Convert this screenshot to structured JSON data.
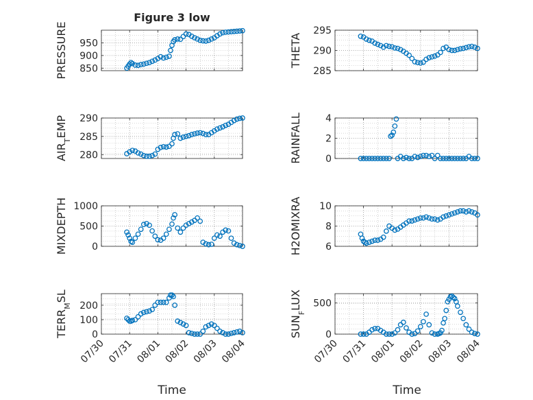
{
  "figure": {
    "title": "Figure 3 low",
    "xlabel": "Time"
  },
  "colors": {
    "marker": "#0072BD",
    "axis": "#262626",
    "grid": "#b0b0b0"
  },
  "chart_data": [
    {
      "type": "scatter",
      "position": "row1-left",
      "ylabel": "PRESSURE",
      "ylim": [
        840,
        1000
      ],
      "yticks": [
        850,
        900,
        950
      ],
      "xlim": [
        0,
        5
      ],
      "xticklabels": [
        "07/30",
        "07/31",
        "08/01",
        "08/02",
        "08/03",
        "08/04"
      ],
      "show_xticklabels": false,
      "x": [
        0.9,
        0.95,
        1.0,
        1.05,
        1.1,
        1.2,
        1.3,
        1.4,
        1.5,
        1.6,
        1.7,
        1.8,
        1.9,
        2.0,
        2.1,
        2.2,
        2.3,
        2.4,
        2.45,
        2.5,
        2.55,
        2.6,
        2.7,
        2.8,
        2.9,
        3.0,
        3.1,
        3.2,
        3.3,
        3.4,
        3.5,
        3.6,
        3.7,
        3.8,
        3.9,
        4.0,
        4.1,
        4.2,
        4.3,
        4.4,
        4.5,
        4.6,
        4.7,
        4.8,
        4.9,
        5.0
      ],
      "y": [
        850,
        858,
        866,
        872,
        868,
        862,
        861,
        864,
        866,
        869,
        872,
        877,
        882,
        888,
        895,
        890,
        893,
        897,
        920,
        940,
        955,
        962,
        965,
        964,
        975,
        985,
        983,
        976,
        970,
        965,
        960,
        958,
        957,
        960,
        965,
        970,
        978,
        985,
        990,
        992,
        993,
        994,
        995,
        996,
        997,
        998
      ]
    },
    {
      "type": "scatter",
      "position": "row1-right",
      "ylabel": "THETA",
      "ylim": [
        285,
        295
      ],
      "yticks": [
        285,
        290,
        295
      ],
      "xlim": [
        0,
        5
      ],
      "xticklabels": [
        "07/30",
        "07/31",
        "08/01",
        "08/02",
        "08/03",
        "08/04"
      ],
      "show_xticklabels": false,
      "x": [
        0.9,
        1.0,
        1.1,
        1.2,
        1.3,
        1.4,
        1.5,
        1.6,
        1.7,
        1.8,
        1.9,
        2.0,
        2.1,
        2.2,
        2.3,
        2.4,
        2.5,
        2.6,
        2.7,
        2.8,
        2.9,
        3.0,
        3.1,
        3.2,
        3.3,
        3.4,
        3.5,
        3.6,
        3.7,
        3.8,
        3.9,
        4.0,
        4.1,
        4.2,
        4.3,
        4.4,
        4.5,
        4.6,
        4.7,
        4.8,
        4.9,
        5.0
      ],
      "y": [
        293.5,
        293.3,
        292.8,
        292.5,
        292.3,
        291.8,
        291.5,
        291.2,
        290.8,
        291.2,
        291.0,
        290.9,
        290.6,
        290.5,
        290.2,
        289.8,
        289.3,
        288.8,
        288.0,
        287.2,
        287.0,
        286.9,
        287.1,
        287.8,
        288.2,
        288.4,
        288.6,
        288.9,
        289.5,
        290.5,
        290.8,
        290.2,
        290.0,
        290.0,
        290.2,
        290.4,
        290.5,
        290.7,
        290.9,
        291.0,
        290.8,
        290.5
      ]
    },
    {
      "type": "scatter",
      "position": "row2-left",
      "ylabel": "AIR_TEMP",
      "ylim": [
        279,
        290
      ],
      "yticks": [
        280,
        285,
        290
      ],
      "xlim": [
        0,
        5
      ],
      "xticklabels": [
        "07/30",
        "07/31",
        "08/01",
        "08/02",
        "08/03",
        "08/04"
      ],
      "show_xticklabels": false,
      "x": [
        0.9,
        1.0,
        1.1,
        1.2,
        1.3,
        1.4,
        1.5,
        1.6,
        1.7,
        1.8,
        1.9,
        2.0,
        2.1,
        2.2,
        2.3,
        2.4,
        2.5,
        2.55,
        2.6,
        2.7,
        2.8,
        2.9,
        3.0,
        3.1,
        3.2,
        3.3,
        3.4,
        3.5,
        3.6,
        3.7,
        3.8,
        3.9,
        4.0,
        4.1,
        4.2,
        4.3,
        4.4,
        4.5,
        4.6,
        4.7,
        4.8,
        4.9,
        5.0
      ],
      "y": [
        280.3,
        280.8,
        281.2,
        281.0,
        280.5,
        280.2,
        279.8,
        279.6,
        279.6,
        279.8,
        280.2,
        281.5,
        282.0,
        282.2,
        282.1,
        282.3,
        283.0,
        284.5,
        285.5,
        285.7,
        284.5,
        284.8,
        285.0,
        285.2,
        285.5,
        285.7,
        285.9,
        286.0,
        285.8,
        285.5,
        285.5,
        286.0,
        286.5,
        287.0,
        287.3,
        287.6,
        288.0,
        288.3,
        288.8,
        289.3,
        289.7,
        289.9,
        290.0
      ]
    },
    {
      "type": "scatter",
      "position": "row2-right",
      "ylabel": "RAINFALL",
      "ylim": [
        0,
        4
      ],
      "yticks": [
        0,
        2,
        4
      ],
      "xlim": [
        0,
        5
      ],
      "xticklabels": [
        "07/30",
        "07/31",
        "08/01",
        "08/02",
        "08/03",
        "08/04"
      ],
      "show_xticklabels": false,
      "x": [
        0.9,
        1.0,
        1.1,
        1.2,
        1.3,
        1.4,
        1.5,
        1.6,
        1.7,
        1.8,
        1.9,
        1.95,
        2.0,
        2.05,
        2.1,
        2.15,
        2.2,
        2.3,
        2.4,
        2.5,
        2.6,
        2.7,
        2.8,
        2.9,
        3.0,
        3.1,
        3.2,
        3.3,
        3.4,
        3.5,
        3.6,
        3.7,
        3.8,
        3.9,
        4.0,
        4.1,
        4.2,
        4.3,
        4.4,
        4.5,
        4.6,
        4.7,
        4.8,
        4.9,
        5.0
      ],
      "y": [
        0,
        0,
        0,
        0,
        0,
        0,
        0,
        0,
        0,
        0,
        0,
        2.2,
        2.3,
        2.6,
        3.2,
        3.9,
        0,
        0.2,
        0,
        0.1,
        0,
        0,
        0.2,
        0.1,
        0.2,
        0.3,
        0.3,
        0.2,
        0.3,
        0,
        0.3,
        0,
        0,
        0,
        0,
        0,
        0,
        0,
        0,
        0,
        0,
        0.2,
        0,
        0,
        0
      ]
    },
    {
      "type": "scatter",
      "position": "row3-left",
      "ylabel": "MIXDEPTH",
      "ylim": [
        0,
        1000
      ],
      "yticks": [
        0,
        500,
        1000
      ],
      "xlim": [
        0,
        5
      ],
      "xticklabels": [
        "07/30",
        "07/31",
        "08/01",
        "08/02",
        "08/03",
        "08/04"
      ],
      "show_xticklabels": false,
      "x": [
        0.9,
        0.95,
        1.0,
        1.05,
        1.1,
        1.2,
        1.3,
        1.4,
        1.5,
        1.6,
        1.7,
        1.8,
        1.9,
        2.0,
        2.1,
        2.2,
        2.3,
        2.4,
        2.5,
        2.55,
        2.6,
        2.7,
        2.8,
        2.9,
        3.0,
        3.1,
        3.2,
        3.3,
        3.4,
        3.5,
        3.6,
        3.7,
        3.8,
        3.9,
        4.0,
        4.1,
        4.2,
        4.3,
        4.4,
        4.5,
        4.6,
        4.7,
        4.8,
        4.9,
        5.0
      ],
      "y": [
        350,
        280,
        200,
        120,
        100,
        200,
        300,
        420,
        540,
        560,
        520,
        380,
        250,
        160,
        150,
        200,
        300,
        420,
        550,
        700,
        780,
        450,
        350,
        450,
        520,
        560,
        600,
        640,
        700,
        620,
        100,
        60,
        40,
        50,
        200,
        280,
        250,
        350,
        400,
        380,
        200,
        80,
        40,
        20,
        0
      ]
    },
    {
      "type": "scatter",
      "position": "row3-right",
      "ylabel": "H2OMIXRA",
      "ylim": [
        6,
        10
      ],
      "yticks": [
        6,
        8,
        10
      ],
      "xlim": [
        0,
        5
      ],
      "xticklabels": [
        "07/30",
        "07/31",
        "08/01",
        "08/02",
        "08/03",
        "08/04"
      ],
      "show_xticklabels": false,
      "x": [
        0.9,
        0.95,
        1.0,
        1.05,
        1.1,
        1.2,
        1.3,
        1.4,
        1.5,
        1.6,
        1.7,
        1.8,
        1.9,
        2.0,
        2.1,
        2.2,
        2.3,
        2.4,
        2.5,
        2.6,
        2.7,
        2.8,
        2.9,
        3.0,
        3.1,
        3.2,
        3.3,
        3.4,
        3.5,
        3.6,
        3.7,
        3.8,
        3.9,
        4.0,
        4.1,
        4.2,
        4.3,
        4.4,
        4.5,
        4.6,
        4.7,
        4.8,
        4.9,
        5.0
      ],
      "y": [
        7.2,
        6.8,
        6.5,
        6.4,
        6.3,
        6.4,
        6.5,
        6.6,
        6.6,
        6.7,
        6.9,
        7.5,
        8.0,
        7.8,
        7.6,
        7.7,
        7.9,
        8.1,
        8.3,
        8.5,
        8.5,
        8.6,
        8.7,
        8.8,
        8.8,
        8.9,
        8.8,
        8.7,
        8.7,
        8.6,
        8.7,
        8.9,
        9.0,
        9.1,
        9.2,
        9.3,
        9.4,
        9.5,
        9.5,
        9.4,
        9.5,
        9.4,
        9.3,
        9.1
      ]
    },
    {
      "type": "scatter",
      "position": "row4-left",
      "ylabel": "TERR_MSL",
      "ylim": [
        0,
        280
      ],
      "yticks": [
        0,
        100,
        200
      ],
      "xlim": [
        0,
        5
      ],
      "xticklabels": [
        "07/30",
        "07/31",
        "08/01",
        "08/02",
        "08/03",
        "08/04"
      ],
      "show_xticklabels": true,
      "x": [
        0.9,
        0.95,
        1.0,
        1.05,
        1.1,
        1.2,
        1.3,
        1.4,
        1.5,
        1.6,
        1.7,
        1.8,
        1.9,
        2.0,
        2.1,
        2.2,
        2.3,
        2.4,
        2.45,
        2.5,
        2.55,
        2.6,
        2.7,
        2.8,
        2.9,
        3.0,
        3.1,
        3.2,
        3.3,
        3.4,
        3.5,
        3.6,
        3.7,
        3.8,
        3.9,
        4.0,
        4.1,
        4.2,
        4.3,
        4.4,
        4.5,
        4.6,
        4.7,
        4.8,
        4.9,
        5.0
      ],
      "y": [
        110,
        100,
        90,
        90,
        95,
        100,
        120,
        140,
        150,
        155,
        160,
        170,
        200,
        220,
        220,
        220,
        220,
        250,
        270,
        270,
        260,
        200,
        90,
        80,
        70,
        60,
        10,
        5,
        0,
        0,
        0,
        20,
        50,
        60,
        70,
        60,
        40,
        20,
        10,
        0,
        0,
        5,
        10,
        15,
        20,
        10
      ]
    },
    {
      "type": "scatter",
      "position": "row4-right",
      "ylabel": "SUN_FLUX",
      "ylim": [
        0,
        650
      ],
      "yticks": [
        0,
        500
      ],
      "xlim": [
        0,
        5
      ],
      "xticklabels": [
        "07/30",
        "07/31",
        "08/01",
        "08/02",
        "08/03",
        "08/04"
      ],
      "show_xticklabels": true,
      "x": [
        0.9,
        1.0,
        1.1,
        1.2,
        1.3,
        1.4,
        1.5,
        1.6,
        1.7,
        1.8,
        1.9,
        2.0,
        2.1,
        2.2,
        2.3,
        2.4,
        2.5,
        2.6,
        2.7,
        2.8,
        2.9,
        3.0,
        3.1,
        3.2,
        3.3,
        3.4,
        3.5,
        3.6,
        3.65,
        3.7,
        3.75,
        3.8,
        3.85,
        3.9,
        3.95,
        4.0,
        4.05,
        4.1,
        4.15,
        4.2,
        4.25,
        4.3,
        4.4,
        4.5,
        4.6,
        4.7,
        4.8,
        4.9,
        5.0
      ],
      "y": [
        0,
        0,
        0,
        30,
        70,
        90,
        90,
        60,
        30,
        0,
        0,
        0,
        20,
        70,
        150,
        190,
        100,
        30,
        0,
        10,
        50,
        120,
        200,
        320,
        150,
        20,
        0,
        0,
        10,
        20,
        60,
        180,
        250,
        380,
        520,
        560,
        600,
        610,
        590,
        570,
        520,
        450,
        350,
        250,
        150,
        80,
        30,
        10,
        0
      ]
    }
  ]
}
